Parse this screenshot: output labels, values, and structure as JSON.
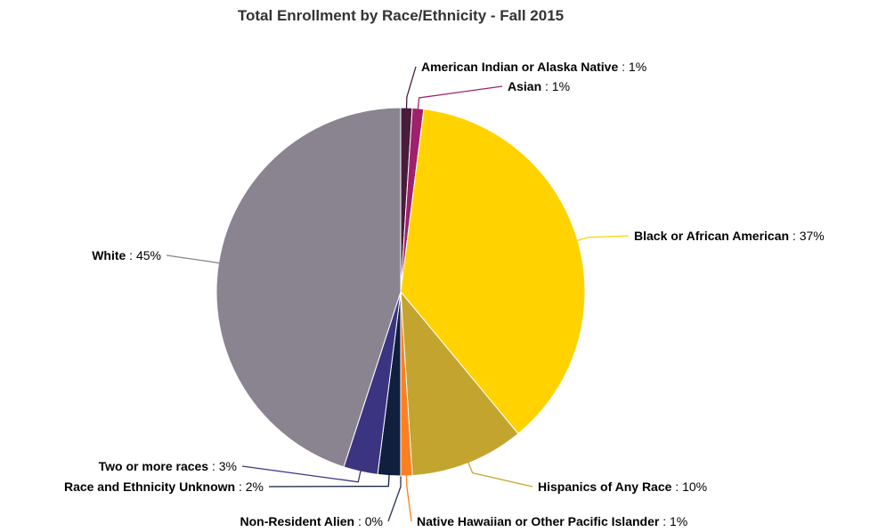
{
  "chart_data": {
    "type": "pie",
    "title": "Total Enrollment by Race/Ethnicity - Fall 2015",
    "categories": [
      "American Indian or Alaska Native",
      "Asian",
      "Black or African American",
      "Hispanics of Any Race",
      "Native Hawaiian or Other Pacific Islander",
      "Non-Resident Alien",
      "Race and Ethnicity Unknown",
      "Two or more races",
      "White"
    ],
    "values": [
      1,
      1,
      37,
      10,
      1,
      0,
      2,
      3,
      45
    ],
    "value_labels": [
      "1%",
      "1%",
      "37%",
      "10%",
      "1%",
      "0%",
      "2%",
      "3%",
      "45%"
    ],
    "colors": [
      "#4a1c3c",
      "#a0206e",
      "#ffd200",
      "#c3a42e",
      "#ff7f1e",
      "#2a3350",
      "#0f1f3d",
      "#3b3480",
      "#8a8490"
    ]
  }
}
